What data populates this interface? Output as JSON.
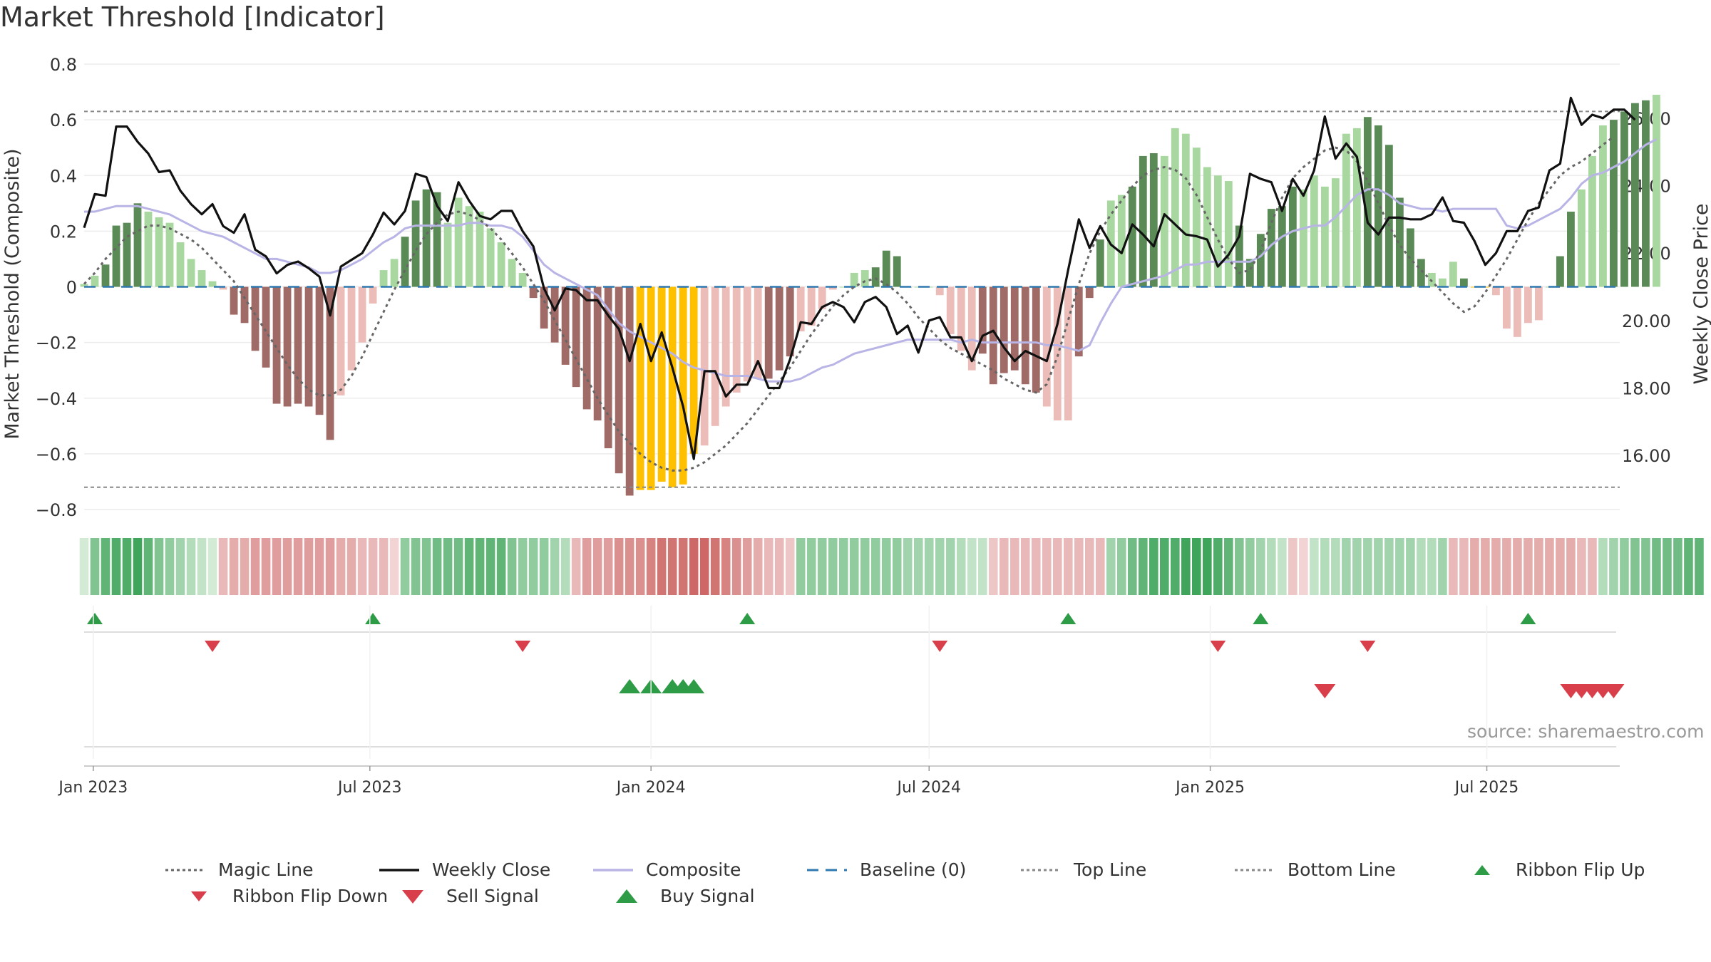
{
  "title": "Market Threshold [Indicator]",
  "source": "source: sharemaestro.com",
  "colors": {
    "dark_green": "#5a8a55",
    "light_green": "#a8d8a0",
    "dark_red": "#a06a66",
    "light_red": "#ecbdb8",
    "gold": "#ffc000",
    "close": "#111111",
    "composite": "#b9b4e6",
    "magic": "#666666",
    "baseline": "#2f78b0",
    "thresholds": "#888888",
    "buy": "#2e9b47",
    "sell": "#d93f4b"
  },
  "legend": [
    {
      "key": "magic",
      "label": "Magic Line",
      "style": "dotted"
    },
    {
      "key": "close",
      "label": "Weekly Close",
      "style": "solid"
    },
    {
      "key": "composite",
      "label": "Composite",
      "style": "solid"
    },
    {
      "key": "baseline",
      "label": "Baseline (0)",
      "style": "dashed"
    },
    {
      "key": "top",
      "label": "Top Line",
      "style": "dotted"
    },
    {
      "key": "bottom",
      "label": "Bottom Line",
      "style": "dotted"
    },
    {
      "key": "flip_up",
      "label": "Ribbon Flip Up",
      "style": "tri-up"
    },
    {
      "key": "flip_down",
      "label": "Ribbon Flip Down",
      "style": "tri-down"
    },
    {
      "key": "sell",
      "label": "Sell Signal",
      "style": "tri-down-big"
    },
    {
      "key": "buy",
      "label": "Buy Signal",
      "style": "tri-up-big"
    }
  ],
  "chart_data": {
    "type": "bar",
    "y_left_label": "Market Threshold (Composite)",
    "y_right_label": "Weekly Close Price",
    "y_left_ticks": [
      "0.8",
      "0.6",
      "0.4",
      "0.2",
      "0",
      "−0.2",
      "−0.4",
      "−0.6",
      "−0.8"
    ],
    "y_left_tick_values": [
      0.8,
      0.6,
      0.4,
      0.2,
      0,
      -0.2,
      -0.4,
      -0.6,
      -0.8
    ],
    "y_right_ticks": [
      "26.00",
      "24.00",
      "22.00",
      "20.00",
      "18.00",
      "16.00"
    ],
    "y_right_tick_values": [
      26,
      24,
      22,
      20,
      18,
      16
    ],
    "ylim_left": [
      -0.8,
      0.8
    ],
    "ylim_right": [
      14.4,
      27.6
    ],
    "x_ticks": [
      "Jan 2023",
      "Jul 2023",
      "Jan 2024",
      "Jul 2024",
      "Jan 2025",
      "Jul 2025"
    ],
    "x_tick_dates": [
      "2023-01-01",
      "2023-07-01",
      "2024-01-01",
      "2024-07-01",
      "2025-01-01",
      "2025-07-01"
    ],
    "x_range": [
      "2022-12-26",
      "2025-09-26"
    ],
    "first_week": "2022-12-26",
    "top_line": 0.63,
    "bottom_line": -0.72,
    "bars": [
      0.01,
      0.04,
      0.08,
      0.22,
      0.23,
      0.3,
      0.27,
      0.25,
      0.23,
      0.16,
      0.1,
      0.06,
      0.02,
      -0.01,
      -0.1,
      -0.13,
      -0.23,
      -0.29,
      -0.42,
      -0.43,
      -0.42,
      -0.43,
      -0.46,
      -0.55,
      -0.39,
      -0.3,
      -0.2,
      -0.06,
      0.06,
      0.1,
      0.18,
      0.31,
      0.35,
      0.34,
      0.23,
      0.32,
      0.29,
      0.27,
      0.21,
      0.16,
      0.1,
      0.05,
      -0.04,
      -0.15,
      -0.2,
      -0.28,
      -0.36,
      -0.44,
      -0.48,
      -0.58,
      -0.67,
      -0.75,
      -0.73,
      -0.73,
      -0.7,
      -0.72,
      -0.71,
      -0.6,
      -0.57,
      -0.5,
      -0.43,
      -0.38,
      -0.34,
      -0.33,
      -0.33,
      -0.3,
      -0.25,
      -0.16,
      -0.14,
      -0.08,
      -0.01,
      0.0,
      0.05,
      0.06,
      0.07,
      0.13,
      0.11,
      0.0,
      0.0,
      0.0,
      -0.03,
      -0.17,
      -0.23,
      -0.3,
      -0.24,
      -0.35,
      -0.31,
      -0.3,
      -0.35,
      -0.38,
      -0.43,
      -0.48,
      -0.48,
      -0.25,
      -0.04,
      0.17,
      0.31,
      0.33,
      0.36,
      0.47,
      0.48,
      0.47,
      0.57,
      0.55,
      0.5,
      0.43,
      0.4,
      0.38,
      0.22,
      0.1,
      0.19,
      0.28,
      0.29,
      0.36,
      0.35,
      0.4,
      0.36,
      0.39,
      0.55,
      0.57,
      0.61,
      0.58,
      0.51,
      0.32,
      0.21,
      0.1,
      0.05,
      0.03,
      0.09,
      0.03,
      0.0,
      0.0,
      -0.03,
      -0.15,
      -0.18,
      -0.13,
      -0.12,
      0.0,
      0.11,
      0.27,
      0.35,
      0.47,
      0.58,
      0.6,
      0.63,
      0.66,
      0.67,
      0.69
    ],
    "bar_types": "LLDDDDLLLLLLLLDDDDDDDDDDLLLLLLDDDDLLLLLLLLDDDDDDDDDDGGGGGGLLLLLLDDDLLLLLLLDDDDLLLLLLDDDDDDLLLDDDLLDDDLLLLLLLDDDDDDLLLLLLDDDDDDLLLDGGLLLLLLDDLLLDDDDLLDDDDDDDGGGGGG",
    "close": [
      22.75,
      23.75,
      23.7,
      25.75,
      25.75,
      25.3,
      24.95,
      24.4,
      24.45,
      23.85,
      23.45,
      23.15,
      23.45,
      22.8,
      22.6,
      23.15,
      22.1,
      21.9,
      21.4,
      21.65,
      21.75,
      21.55,
      21.3,
      20.15,
      21.6,
      21.8,
      22.0,
      22.55,
      23.2,
      22.85,
      23.25,
      24.35,
      24.25,
      23.4,
      22.95,
      24.1,
      23.55,
      23.1,
      23.0,
      23.25,
      23.25,
      22.65,
      22.2,
      20.95,
      20.3,
      20.95,
      20.9,
      20.6,
      20.6,
      20.15,
      19.75,
      18.8,
      19.9,
      18.8,
      19.65,
      18.6,
      17.45,
      15.9,
      18.5,
      18.5,
      17.75,
      18.1,
      18.1,
      18.8,
      18.0,
      18.0,
      18.85,
      19.95,
      19.9,
      20.4,
      20.55,
      20.4,
      19.95,
      20.55,
      20.7,
      20.4,
      19.6,
      19.85,
      19.05,
      20.0,
      20.1,
      19.5,
      19.5,
      18.8,
      19.55,
      19.7,
      19.2,
      18.8,
      19.1,
      18.95,
      18.8,
      19.9,
      21.5,
      23.0,
      22.15,
      22.8,
      22.25,
      22.0,
      22.85,
      22.55,
      22.2,
      23.15,
      22.85,
      22.55,
      22.5,
      22.4,
      21.6,
      21.95,
      22.5,
      24.35,
      24.2,
      24.1,
      23.25,
      24.2,
      23.7,
      24.45,
      26.05,
      24.8,
      25.25,
      24.85,
      22.9,
      22.55,
      23.05,
      23.05,
      23.0,
      23.0,
      23.15,
      23.65,
      22.95,
      22.9,
      22.35,
      21.65,
      22.0,
      22.65,
      22.65,
      23.25,
      23.35,
      24.45,
      24.65,
      26.6,
      25.8,
      26.1,
      26.0,
      26.25,
      26.25,
      25.95
    ],
    "composite": [
      0.27,
      0.27,
      0.28,
      0.29,
      0.29,
      0.29,
      0.28,
      0.27,
      0.26,
      0.24,
      0.22,
      0.2,
      0.19,
      0.18,
      0.16,
      0.14,
      0.12,
      0.1,
      0.1,
      0.09,
      0.08,
      0.07,
      0.05,
      0.05,
      0.06,
      0.08,
      0.1,
      0.13,
      0.16,
      0.18,
      0.21,
      0.22,
      0.22,
      0.22,
      0.22,
      0.22,
      0.23,
      0.23,
      0.22,
      0.22,
      0.21,
      0.18,
      0.13,
      0.08,
      0.05,
      0.03,
      0.01,
      -0.01,
      -0.03,
      -0.08,
      -0.13,
      -0.16,
      -0.18,
      -0.2,
      -0.22,
      -0.24,
      -0.27,
      -0.29,
      -0.3,
      -0.31,
      -0.32,
      -0.32,
      -0.32,
      -0.33,
      -0.34,
      -0.34,
      -0.34,
      -0.33,
      -0.31,
      -0.29,
      -0.28,
      -0.26,
      -0.24,
      -0.23,
      -0.22,
      -0.21,
      -0.2,
      -0.19,
      -0.19,
      -0.19,
      -0.19,
      -0.19,
      -0.2,
      -0.19,
      -0.2,
      -0.2,
      -0.2,
      -0.2,
      -0.2,
      -0.2,
      -0.21,
      -0.21,
      -0.22,
      -0.23,
      -0.21,
      -0.13,
      -0.06,
      0.0,
      0.01,
      0.02,
      0.03,
      0.04,
      0.06,
      0.08,
      0.08,
      0.09,
      0.09,
      0.09,
      0.09,
      0.09,
      0.11,
      0.15,
      0.18,
      0.2,
      0.21,
      0.22,
      0.22,
      0.25,
      0.29,
      0.33,
      0.35,
      0.35,
      0.33,
      0.3,
      0.29,
      0.28,
      0.28,
      0.27,
      0.28,
      0.28,
      0.28,
      0.28,
      0.28,
      0.22,
      0.21,
      0.22,
      0.24,
      0.26,
      0.28,
      0.32,
      0.37,
      0.4,
      0.41,
      0.43,
      0.45,
      0.48,
      0.51,
      0.53
    ],
    "magic": [
      0.01,
      0.05,
      0.1,
      0.14,
      0.18,
      0.2,
      0.22,
      0.22,
      0.21,
      0.19,
      0.17,
      0.14,
      0.1,
      0.06,
      0.02,
      -0.04,
      -0.1,
      -0.16,
      -0.22,
      -0.28,
      -0.33,
      -0.37,
      -0.39,
      -0.39,
      -0.37,
      -0.32,
      -0.25,
      -0.17,
      -0.09,
      -0.01,
      0.06,
      0.13,
      0.19,
      0.23,
      0.26,
      0.27,
      0.26,
      0.24,
      0.21,
      0.17,
      0.12,
      0.07,
      0.01,
      -0.05,
      -0.12,
      -0.19,
      -0.26,
      -0.33,
      -0.4,
      -0.46,
      -0.52,
      -0.56,
      -0.6,
      -0.63,
      -0.65,
      -0.66,
      -0.66,
      -0.65,
      -0.63,
      -0.6,
      -0.57,
      -0.53,
      -0.49,
      -0.44,
      -0.39,
      -0.34,
      -0.29,
      -0.23,
      -0.17,
      -0.12,
      -0.07,
      -0.03,
      0.0,
      0.02,
      0.03,
      0.01,
      -0.02,
      -0.06,
      -0.11,
      -0.15,
      -0.19,
      -0.22,
      -0.24,
      -0.26,
      -0.28,
      -0.3,
      -0.33,
      -0.35,
      -0.37,
      -0.38,
      -0.35,
      -0.25,
      -0.12,
      0.01,
      0.12,
      0.2,
      0.26,
      0.31,
      0.36,
      0.4,
      0.42,
      0.43,
      0.42,
      0.39,
      0.33,
      0.25,
      0.17,
      0.1,
      0.05,
      0.06,
      0.13,
      0.23,
      0.32,
      0.39,
      0.43,
      0.46,
      0.49,
      0.5,
      0.49,
      0.45,
      0.38,
      0.3,
      0.22,
      0.15,
      0.1,
      0.06,
      0.02,
      -0.02,
      -0.06,
      -0.09,
      -0.07,
      -0.02,
      0.04,
      0.1,
      0.17,
      0.24,
      0.3,
      0.35,
      0.4,
      0.43,
      0.45,
      0.48,
      0.51,
      0.54
    ],
    "ribbon": [
      0.1,
      0.6,
      0.8,
      0.9,
      0.9,
      1.0,
      0.8,
      0.6,
      0.5,
      0.4,
      0.3,
      0.2,
      0.1,
      -0.3,
      -0.4,
      -0.4,
      -0.5,
      -0.5,
      -0.5,
      -0.5,
      -0.5,
      -0.5,
      -0.5,
      -0.5,
      -0.4,
      -0.4,
      -0.3,
      -0.3,
      -0.3,
      -0.1,
      0.5,
      0.6,
      0.6,
      0.7,
      0.7,
      0.7,
      0.8,
      0.8,
      0.8,
      0.8,
      0.6,
      0.5,
      0.5,
      0.5,
      0.4,
      0.3,
      -0.3,
      -0.5,
      -0.5,
      -0.5,
      -0.6,
      -0.6,
      -0.6,
      -0.7,
      -0.8,
      -0.8,
      -0.8,
      -0.9,
      -0.9,
      -0.8,
      -0.7,
      -0.6,
      -0.5,
      -0.4,
      -0.3,
      -0.3,
      -0.2,
      0.5,
      0.5,
      0.5,
      0.5,
      0.5,
      0.5,
      0.5,
      0.5,
      0.5,
      0.5,
      0.4,
      0.4,
      0.4,
      0.4,
      0.4,
      0.3,
      0.2,
      0.2,
      -0.2,
      -0.3,
      -0.3,
      -0.3,
      -0.3,
      -0.3,
      -0.3,
      -0.3,
      -0.3,
      -0.3,
      -0.3,
      0.4,
      0.5,
      0.7,
      0.8,
      0.9,
      0.9,
      0.9,
      1.0,
      1.0,
      1.0,
      0.9,
      0.8,
      0.6,
      0.5,
      0.4,
      0.3,
      0.2,
      -0.2,
      -0.1,
      0.2,
      0.3,
      0.3,
      0.4,
      0.4,
      0.4,
      0.4,
      0.4,
      0.4,
      0.4,
      0.3,
      0.3,
      0.4,
      -0.3,
      -0.3,
      -0.4,
      -0.4,
      -0.4,
      -0.4,
      -0.4,
      -0.4,
      -0.4,
      -0.4,
      -0.4,
      -0.4,
      -0.3,
      -0.3,
      0.3,
      0.4,
      0.5,
      0.6,
      0.6,
      0.7,
      0.7,
      0.7,
      0.8,
      0.8
    ],
    "flip_up_weeks": [
      1,
      27,
      62,
      92,
      110,
      135
    ],
    "flip_down_weeks": [
      12,
      41,
      80,
      106,
      120
    ],
    "buy_signal_weeks": [
      51,
      53,
      55,
      56,
      57
    ],
    "sell_signal_weeks": [
      116,
      139,
      140,
      141,
      142,
      143
    ]
  }
}
